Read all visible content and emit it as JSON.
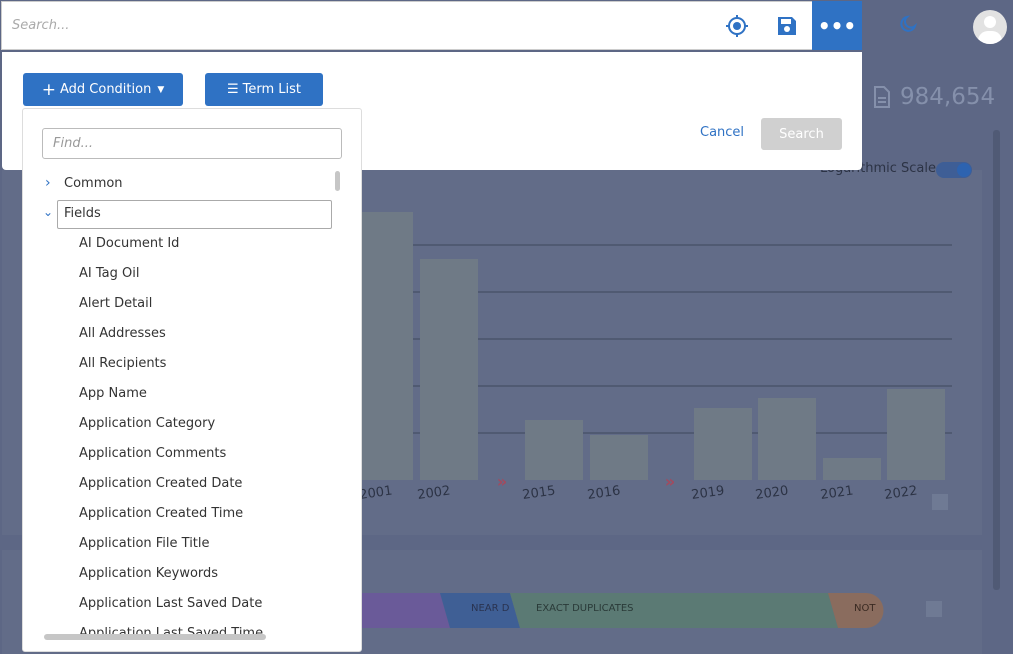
{
  "search_bar": {
    "placeholder": "Search..."
  },
  "toolbar": {
    "add_condition": "Add Condition",
    "term_list": "Term List",
    "cancel": "Cancel",
    "search": "Search"
  },
  "summary": {
    "document_count": "984,654",
    "log_scale_label": "Logarithmic Scale"
  },
  "background_chart": {
    "x_labels": [
      "2001",
      "2002",
      "2015",
      "2016",
      "2019",
      "2020",
      "2021",
      "2022"
    ]
  },
  "duplicates_bar": {
    "segments": [
      "NEAR D",
      "EXACT DUPLICATES",
      "NOT"
    ]
  },
  "field_picker": {
    "find_placeholder": "Find...",
    "groups": [
      {
        "label": "Common"
      },
      {
        "label": "Fields"
      }
    ],
    "fields": [
      "AI Document Id",
      "AI Tag Oil",
      "Alert Detail",
      "All Addresses",
      "All Recipients",
      "App Name",
      "Application Category",
      "Application Comments",
      "Application Created Date",
      "Application Created Time",
      "Application File Title",
      "Application Keywords",
      "Application Last Saved Date",
      "Application Last Saved Time"
    ]
  }
}
